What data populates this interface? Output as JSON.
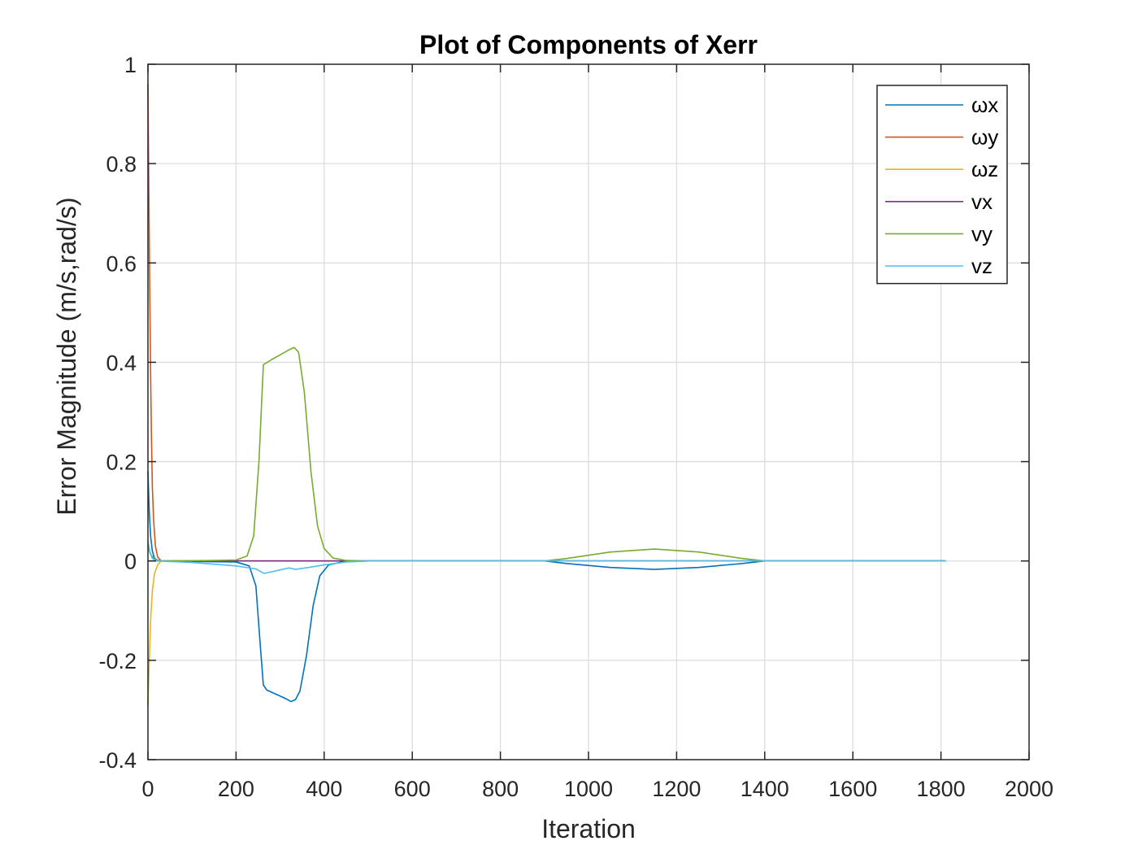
{
  "chart_data": {
    "type": "line",
    "title": "Plot of Components of Xerr",
    "xlabel": "Iteration",
    "ylabel": "Error Magnitude (m/s,rad/s)",
    "xlim": [
      0,
      2000
    ],
    "ylim": [
      -0.4,
      1
    ],
    "xticks": [
      0,
      200,
      400,
      600,
      800,
      1000,
      1200,
      1400,
      1600,
      1800,
      2000
    ],
    "xtick_labels": [
      "0",
      "200",
      "400",
      "600",
      "800",
      "1000",
      "1200",
      "1400",
      "1600",
      "1800",
      "2000"
    ],
    "yticks": [
      -0.4,
      -0.2,
      0,
      0.2,
      0.4,
      0.6,
      0.8,
      1
    ],
    "ytick_labels": [
      "-0.4",
      "-0.2",
      "0",
      "0.2",
      "0.4",
      "0.6",
      "0.8",
      "1"
    ],
    "grid": true,
    "legend_position": "top-right",
    "series": [
      {
        "name": "ωx",
        "color": "#0072BD",
        "points": [
          [
            0,
            0.18
          ],
          [
            3,
            0.1
          ],
          [
            6,
            0.05
          ],
          [
            10,
            0.02
          ],
          [
            15,
            0.005
          ],
          [
            25,
            0
          ],
          [
            100,
            -0.001
          ],
          [
            200,
            -0.002
          ],
          [
            230,
            -0.01
          ],
          [
            245,
            -0.05
          ],
          [
            255,
            -0.17
          ],
          [
            262,
            -0.25
          ],
          [
            270,
            -0.26
          ],
          [
            290,
            -0.268
          ],
          [
            310,
            -0.276
          ],
          [
            325,
            -0.283
          ],
          [
            335,
            -0.279
          ],
          [
            345,
            -0.262
          ],
          [
            360,
            -0.19
          ],
          [
            375,
            -0.09
          ],
          [
            390,
            -0.03
          ],
          [
            410,
            -0.008
          ],
          [
            440,
            -0.002
          ],
          [
            500,
            0
          ],
          [
            900,
            0
          ],
          [
            950,
            -0.005
          ],
          [
            1050,
            -0.013
          ],
          [
            1150,
            -0.017
          ],
          [
            1250,
            -0.013
          ],
          [
            1350,
            -0.005
          ],
          [
            1400,
            0
          ],
          [
            1810,
            0
          ]
        ]
      },
      {
        "name": "ωy",
        "color": "#D95319",
        "points": [
          [
            0,
            0.96
          ],
          [
            2,
            0.75
          ],
          [
            4,
            0.55
          ],
          [
            6,
            0.38
          ],
          [
            8,
            0.25
          ],
          [
            10,
            0.15
          ],
          [
            13,
            0.08
          ],
          [
            17,
            0.03
          ],
          [
            22,
            0.008
          ],
          [
            30,
            0
          ],
          [
            1810,
            0
          ]
        ]
      },
      {
        "name": "ωz",
        "color": "#EDB120",
        "points": [
          [
            0,
            -0.29
          ],
          [
            3,
            -0.2
          ],
          [
            6,
            -0.12
          ],
          [
            10,
            -0.06
          ],
          [
            15,
            -0.025
          ],
          [
            22,
            -0.008
          ],
          [
            30,
            0
          ],
          [
            1810,
            0
          ]
        ]
      },
      {
        "name": "vx",
        "color": "#7E2F8E",
        "points": [
          [
            0,
            0
          ],
          [
            1810,
            0
          ]
        ]
      },
      {
        "name": "vy",
        "color": "#77AC30",
        "points": [
          [
            0,
            0.03
          ],
          [
            5,
            0.015
          ],
          [
            15,
            0.003
          ],
          [
            30,
            0
          ],
          [
            150,
            0.001
          ],
          [
            200,
            0.002
          ],
          [
            225,
            0.01
          ],
          [
            240,
            0.05
          ],
          [
            252,
            0.2
          ],
          [
            262,
            0.395
          ],
          [
            280,
            0.405
          ],
          [
            300,
            0.415
          ],
          [
            320,
            0.425
          ],
          [
            332,
            0.43
          ],
          [
            342,
            0.42
          ],
          [
            355,
            0.34
          ],
          [
            370,
            0.18
          ],
          [
            385,
            0.07
          ],
          [
            400,
            0.025
          ],
          [
            420,
            0.006
          ],
          [
            450,
            0.001
          ],
          [
            500,
            0
          ],
          [
            900,
            0
          ],
          [
            950,
            0.005
          ],
          [
            1050,
            0.018
          ],
          [
            1150,
            0.024
          ],
          [
            1250,
            0.018
          ],
          [
            1350,
            0.005
          ],
          [
            1400,
            0
          ],
          [
            1810,
            0
          ]
        ]
      },
      {
        "name": "vz",
        "color": "#4DBEEE",
        "points": [
          [
            0,
            0.04
          ],
          [
            4,
            0.02
          ],
          [
            10,
            0.005
          ],
          [
            20,
            0
          ],
          [
            100,
            -0.003
          ],
          [
            200,
            -0.01
          ],
          [
            245,
            -0.016
          ],
          [
            263,
            -0.025
          ],
          [
            280,
            -0.022
          ],
          [
            300,
            -0.018
          ],
          [
            320,
            -0.014
          ],
          [
            335,
            -0.017
          ],
          [
            350,
            -0.015
          ],
          [
            400,
            -0.008
          ],
          [
            450,
            -0.002
          ],
          [
            500,
            0
          ],
          [
            1810,
            0
          ]
        ]
      }
    ]
  }
}
